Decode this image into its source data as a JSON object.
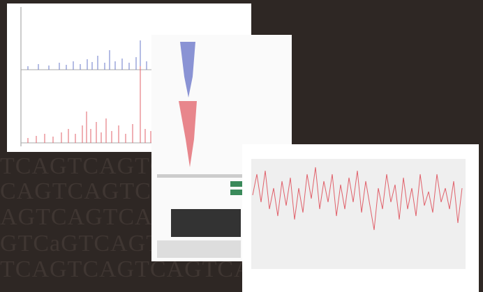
{
  "background": {
    "lines": [
      "TCAGTCAGTCAG",
      "CAGTCAGTCAGT",
      "AGTCAGTCAGTC",
      "GTCaGTCAGTCA",
      "TCAGTCAGTCAGTCAG"
    ]
  }
}
